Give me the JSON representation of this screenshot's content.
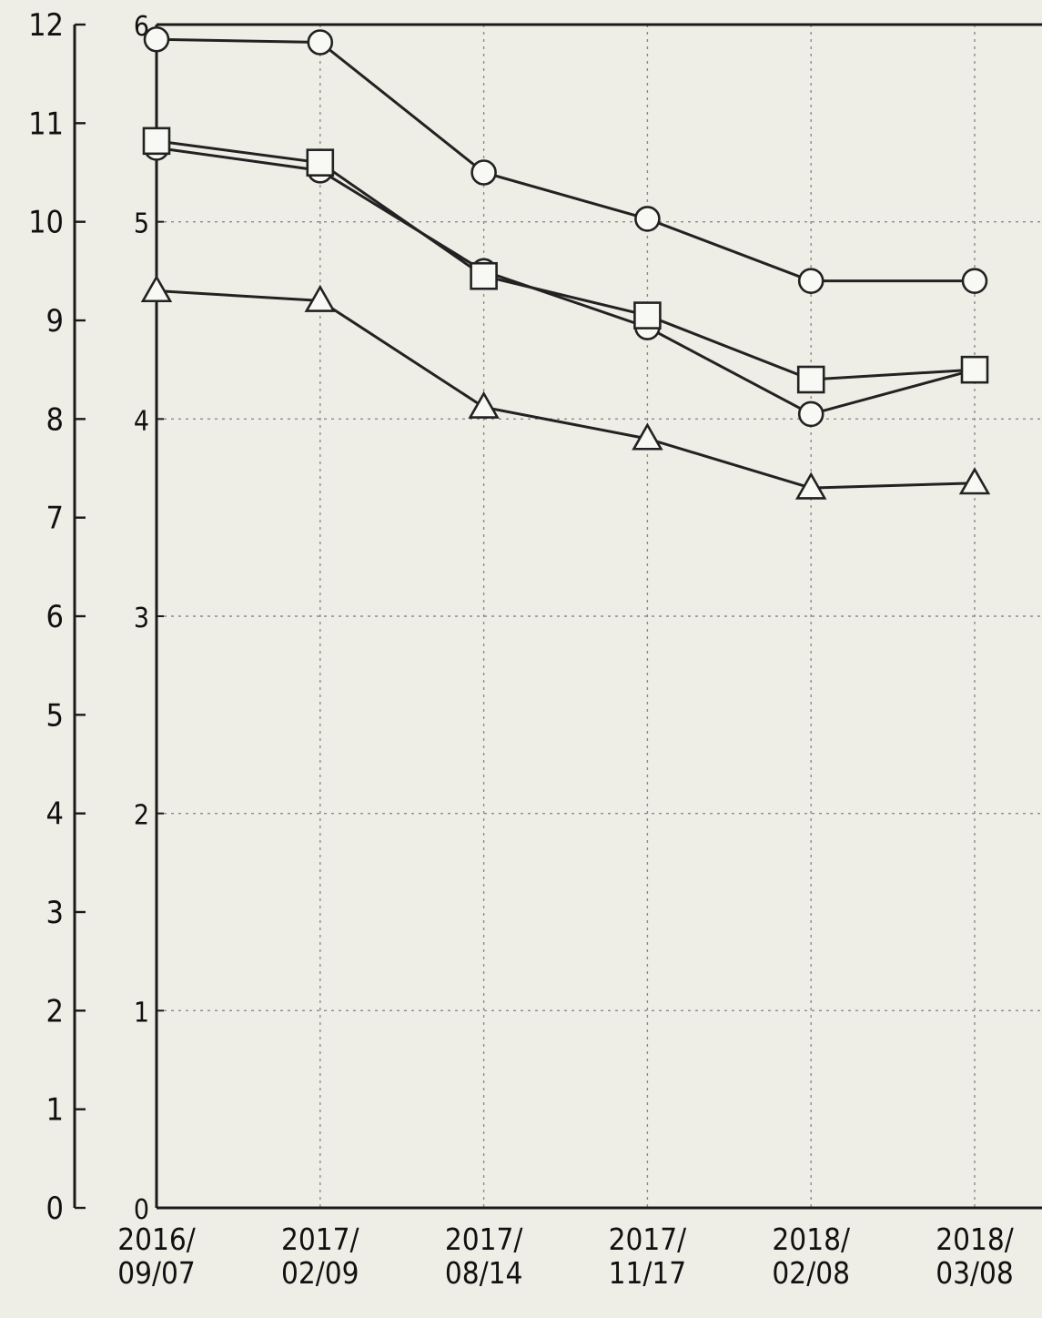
{
  "chart_data": {
    "type": "line",
    "categories": [
      [
        "2016/",
        "09/07"
      ],
      [
        "2017/",
        "02/09"
      ],
      [
        "2017/",
        "08/14"
      ],
      [
        "2017/",
        "11/17"
      ],
      [
        "2018/",
        "02/08"
      ],
      [
        "2018/",
        "03/08"
      ]
    ],
    "y_left": {
      "ticks": [
        "0",
        "1",
        "2",
        "3",
        "4",
        "5",
        "6",
        "7",
        "8",
        "9",
        "10",
        "11",
        "12"
      ],
      "ylim": [
        0,
        12
      ]
    },
    "y_inner": {
      "ticks": [
        "0",
        "1",
        "2",
        "3",
        "4",
        "5",
        "6"
      ],
      "ylim": [
        0,
        6
      ]
    },
    "grid": true,
    "series": [
      {
        "marker": "circle",
        "values": [
          11.85,
          11.82,
          10.5,
          10.03,
          9.4,
          9.4
        ]
      },
      {
        "marker": "circle",
        "values": [
          10.75,
          10.52,
          9.5,
          8.93,
          8.05,
          8.5
        ]
      },
      {
        "marker": "square",
        "values": [
          10.82,
          10.6,
          9.45,
          9.05,
          8.4,
          8.5
        ]
      },
      {
        "marker": "triangle",
        "values": [
          9.3,
          9.2,
          8.12,
          7.8,
          7.3,
          7.35
        ]
      }
    ]
  }
}
